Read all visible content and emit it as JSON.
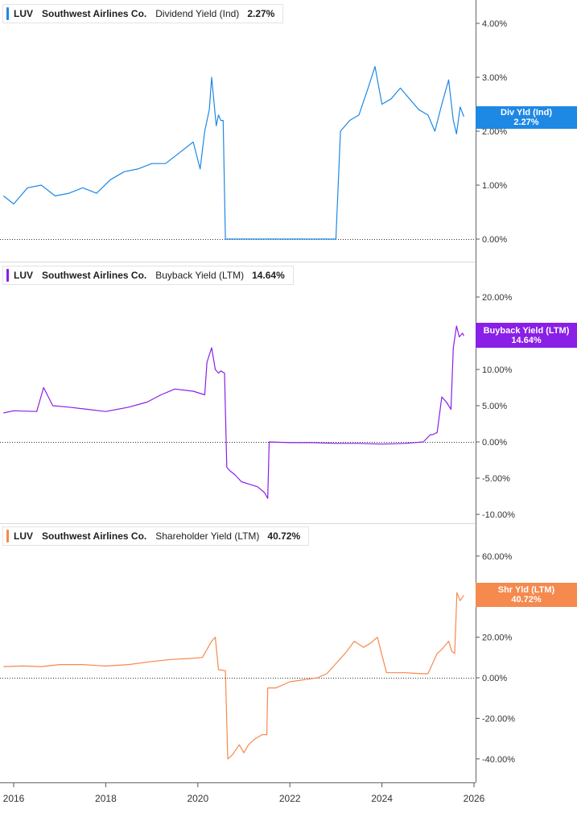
{
  "ticker": "LUV",
  "company": "Southwest Airlines Co.",
  "x_tick_labels": [
    "2016",
    "2018",
    "2020",
    "2022",
    "2024",
    "2026"
  ],
  "chart_data": [
    {
      "type": "line",
      "title": "Dividend Yield (Ind)",
      "current_value_label": "2.27%",
      "badge": {
        "line1": "Div Yld (Ind)",
        "line2": "2.27%"
      },
      "color": "#1e88e5",
      "x_range": [
        "2015-10",
        "2026-02"
      ],
      "ylim": [
        -0.45,
        4.45
      ],
      "y_ticks": [
        0,
        1,
        2,
        3,
        4
      ],
      "y_tick_labels": [
        "0.00%",
        "1.00%",
        "2.00%",
        "3.00%",
        "4.00%"
      ],
      "zero_line": true,
      "series": [
        {
          "x": [
            2015.78,
            2016.0,
            2016.3,
            2016.6,
            2016.9,
            2017.2,
            2017.5,
            2017.8,
            2018.1,
            2018.4,
            2018.7,
            2019.0,
            2019.3,
            2019.6,
            2019.9,
            2020.05,
            2020.15,
            2020.25,
            2020.3,
            2020.4,
            2020.45,
            2020.5,
            2020.55,
            2020.6,
            2023.0,
            2023.1,
            2023.3,
            2023.5,
            2023.7,
            2023.85,
            2024.0,
            2024.2,
            2024.4,
            2024.6,
            2024.8,
            2025.0,
            2025.15,
            2025.3,
            2025.45,
            2025.55,
            2025.62,
            2025.7,
            2025.78
          ],
          "values": [
            0.8,
            0.65,
            0.95,
            1.0,
            0.8,
            0.85,
            0.95,
            0.85,
            1.1,
            1.25,
            1.3,
            1.4,
            1.4,
            1.6,
            1.8,
            1.3,
            2.0,
            2.4,
            3.0,
            2.1,
            2.3,
            2.2,
            2.2,
            0.0,
            0.0,
            2.0,
            2.2,
            2.3,
            2.8,
            3.2,
            2.5,
            2.6,
            2.8,
            2.6,
            2.4,
            2.3,
            2.0,
            2.5,
            2.95,
            2.2,
            1.95,
            2.45,
            2.27
          ]
        }
      ]
    },
    {
      "type": "line",
      "title": "Buyback Yield (LTM)",
      "current_value_label": "14.64%",
      "badge": {
        "line1": "Buyback Yield (LTM)",
        "line2": "14.64%"
      },
      "color": "#8a1fe6",
      "x_range": [
        "2015-10",
        "2026-02"
      ],
      "ylim": [
        -11,
        22
      ],
      "y_ticks": [
        -10,
        -5,
        0,
        5,
        10,
        20
      ],
      "y_tick_labels": [
        "-10.00%",
        "-5.00%",
        "0.00%",
        "5.00%",
        "10.00%",
        "20.00%"
      ],
      "zero_line": true,
      "series": [
        {
          "x": [
            2015.78,
            2016.0,
            2016.5,
            2016.65,
            2016.85,
            2017.2,
            2017.6,
            2018.0,
            2018.5,
            2018.9,
            2019.2,
            2019.5,
            2019.9,
            2020.15,
            2020.2,
            2020.3,
            2020.38,
            2020.45,
            2020.5,
            2020.58,
            2020.63,
            2020.7,
            2020.8,
            2020.95,
            2021.1,
            2021.3,
            2021.45,
            2021.52,
            2021.55,
            2022.0,
            2022.5,
            2023.0,
            2023.5,
            2024.0,
            2024.5,
            2024.9,
            2025.05,
            2025.1,
            2025.2,
            2025.3,
            2025.4,
            2025.5,
            2025.55,
            2025.62,
            2025.68,
            2025.75,
            2025.78
          ],
          "values": [
            4,
            4.3,
            4.2,
            7.5,
            5,
            4.8,
            4.5,
            4.2,
            4.8,
            5.5,
            6.5,
            7.3,
            7.0,
            6.5,
            11,
            13,
            10,
            9.5,
            9.8,
            9.5,
            -3.5,
            -4.0,
            -4.5,
            -5.5,
            -5.8,
            -6.2,
            -7.0,
            -7.8,
            0,
            -0.1,
            -0.1,
            -0.2,
            -0.2,
            -0.3,
            -0.2,
            0,
            1.0,
            1.0,
            1.3,
            6.2,
            5.5,
            4.5,
            13,
            16,
            14.5,
            15,
            14.64
          ]
        }
      ]
    },
    {
      "type": "line",
      "title": "Shareholder Yield (LTM)",
      "current_value_label": "40.72%",
      "badge": {
        "line1": "Shr Yld (LTM)",
        "line2": "40.72%"
      },
      "color": "#f5894e",
      "x_range": [
        "2015-10",
        "2026-02"
      ],
      "ylim": [
        -52,
        65
      ],
      "y_ticks": [
        -40,
        -20,
        0,
        20,
        40,
        60
      ],
      "y_tick_labels": [
        "-40.00%",
        "-20.00%",
        "0.00%",
        "20.00%",
        "40.00%",
        "60.00%"
      ],
      "zero_line": true,
      "series": [
        {
          "x": [
            2015.78,
            2016.2,
            2016.6,
            2017.0,
            2017.5,
            2018.0,
            2018.5,
            2019.0,
            2019.4,
            2019.8,
            2020.1,
            2020.2,
            2020.3,
            2020.38,
            2020.45,
            2020.6,
            2020.65,
            2020.75,
            2020.9,
            2021.0,
            2021.1,
            2021.25,
            2021.4,
            2021.5,
            2021.52,
            2021.7,
            2022.0,
            2022.3,
            2022.6,
            2022.8,
            2023.0,
            2023.2,
            2023.4,
            2023.6,
            2023.75,
            2023.9,
            2024.1,
            2024.5,
            2024.9,
            2025.0,
            2025.2,
            2025.3,
            2025.45,
            2025.52,
            2025.58,
            2025.63,
            2025.7,
            2025.78
          ],
          "values": [
            5.5,
            5.8,
            5.5,
            6.5,
            6.5,
            5.8,
            6.5,
            8.0,
            9.0,
            9.5,
            10.0,
            14,
            18,
            20,
            4,
            3.5,
            -40,
            -38,
            -33,
            -37,
            -33,
            -30,
            -28,
            -28,
            -5,
            -5,
            -2,
            -1,
            0,
            2,
            7,
            12,
            18,
            15,
            17,
            20,
            2.5,
            2.5,
            2.0,
            2.0,
            12,
            14,
            18,
            13,
            12,
            42,
            38,
            40.72
          ]
        }
      ]
    }
  ]
}
